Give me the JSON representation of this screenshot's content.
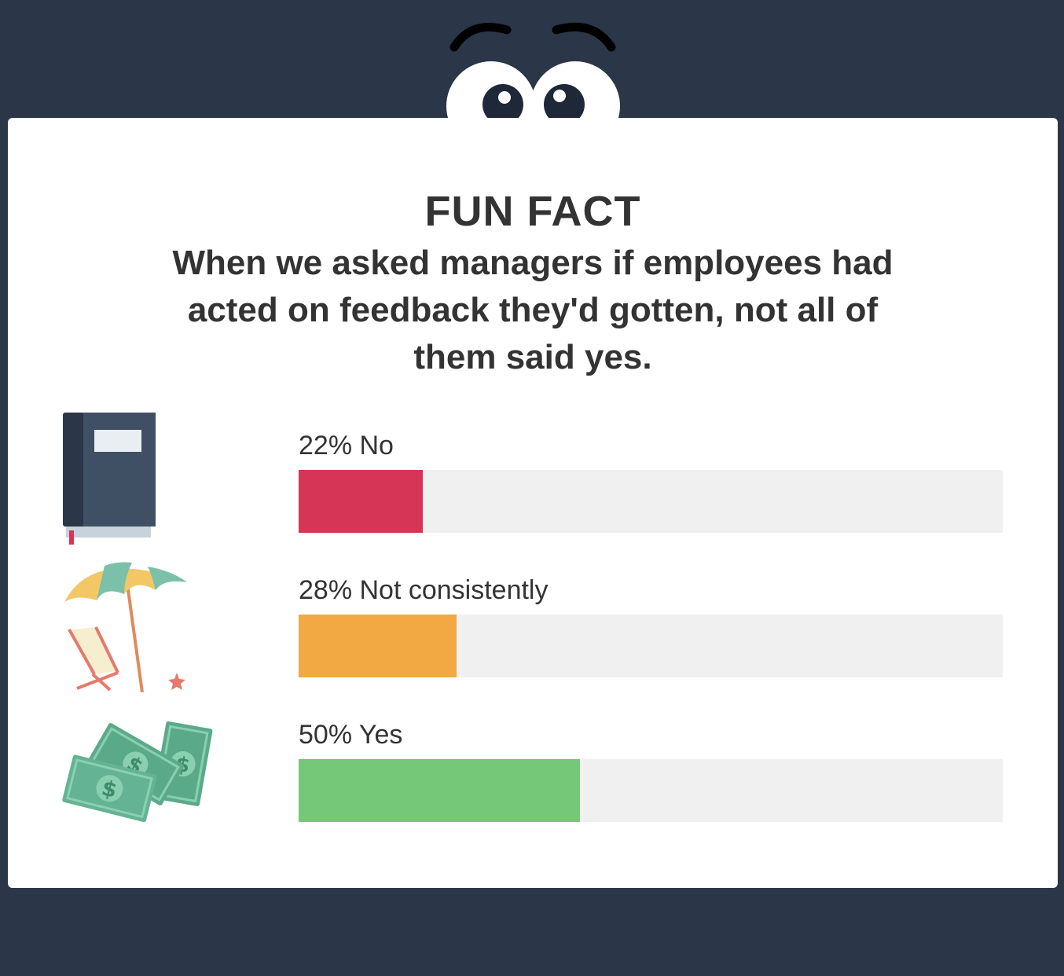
{
  "chart_data": {
    "type": "bar",
    "orientation": "horizontal",
    "title": "FUN FACT",
    "subtitle": "When we asked managers if employees had acted on feedback they'd gotten, not all of them said yes.",
    "categories": [
      "No",
      "Not consistently",
      "Yes"
    ],
    "values": [
      22,
      28,
      50
    ],
    "labels": [
      "22% No",
      "28% Not consistently",
      "50% Yes"
    ],
    "colors": [
      "#d63556",
      "#f2a843",
      "#76c879"
    ],
    "track_color": "#f0f0f0",
    "xlim": [
      0,
      100
    ],
    "unit": "%",
    "grid": false,
    "legend": "none"
  },
  "icons": [
    "book-icon",
    "beach-umbrella-icon",
    "money-icon"
  ],
  "colors": {
    "background": "#2b3648",
    "card": "#ffffff",
    "text": "#333333"
  }
}
